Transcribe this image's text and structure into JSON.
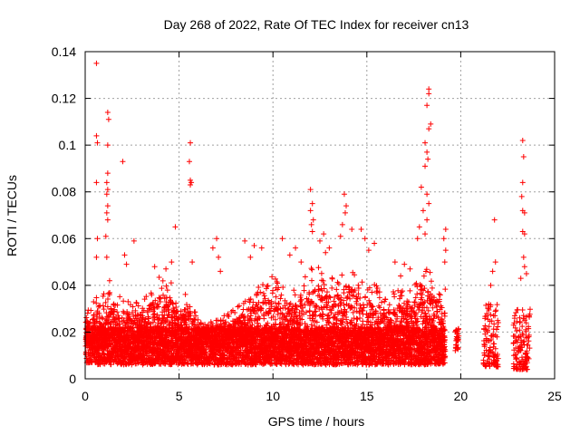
{
  "chart_data": {
    "type": "scatter",
    "title": "Day 268 of 2022, Rate Of TEC Index for receiver cn13",
    "xlabel": "GPS time / hours",
    "ylabel": "ROTI / TECUs",
    "xlim": [
      0,
      25
    ],
    "ylim": [
      0,
      0.14
    ],
    "xticks": [
      0,
      5,
      10,
      15,
      20,
      25
    ],
    "yticks": [
      0,
      0.02,
      0.04,
      0.06,
      0.08,
      0.1,
      0.12,
      0.14
    ],
    "xtick_labels": [
      "0",
      "5",
      "10",
      "15",
      "20",
      "25"
    ],
    "ytick_labels": [
      "0",
      "0.02",
      "0.04",
      "0.06",
      "0.08",
      "0.1",
      "0.12",
      "0.14"
    ],
    "grid": true,
    "legend": "none",
    "marker": "plus",
    "color": "#ff0000",
    "series": [
      {
        "name": "",
        "outliers": [
          [
            0.6,
            0.135
          ],
          [
            0.6,
            0.104
          ],
          [
            0.65,
            0.101
          ],
          [
            0.6,
            0.084
          ],
          [
            0.65,
            0.06
          ],
          [
            0.6,
            0.052
          ],
          [
            1.2,
            0.114
          ],
          [
            1.25,
            0.111
          ],
          [
            1.2,
            0.1
          ],
          [
            1.2,
            0.088
          ],
          [
            1.15,
            0.084
          ],
          [
            1.2,
            0.081
          ],
          [
            1.15,
            0.079
          ],
          [
            1.2,
            0.074
          ],
          [
            1.15,
            0.071
          ],
          [
            1.2,
            0.068
          ],
          [
            1.1,
            0.061
          ],
          [
            1.15,
            0.052
          ],
          [
            1.3,
            0.042
          ],
          [
            2.0,
            0.093
          ],
          [
            2.6,
            0.059
          ],
          [
            2.1,
            0.053
          ],
          [
            2.2,
            0.049
          ],
          [
            4.8,
            0.065
          ],
          [
            3.7,
            0.048
          ],
          [
            4.3,
            0.047
          ],
          [
            4.6,
            0.05
          ],
          [
            5.6,
            0.101
          ],
          [
            5.55,
            0.093
          ],
          [
            5.6,
            0.085
          ],
          [
            5.65,
            0.084
          ],
          [
            5.6,
            0.083
          ],
          [
            5.7,
            0.05
          ],
          [
            7.0,
            0.06
          ],
          [
            6.8,
            0.056
          ],
          [
            7.1,
            0.052
          ],
          [
            7.2,
            0.046
          ],
          [
            8.5,
            0.059
          ],
          [
            9.0,
            0.057
          ],
          [
            9.4,
            0.056
          ],
          [
            8.8,
            0.052
          ],
          [
            10.5,
            0.06
          ],
          [
            11.2,
            0.056
          ],
          [
            10.9,
            0.053
          ],
          [
            11.5,
            0.05
          ],
          [
            12.0,
            0.081
          ],
          [
            12.1,
            0.075
          ],
          [
            12.0,
            0.072
          ],
          [
            12.15,
            0.068
          ],
          [
            12.05,
            0.066
          ],
          [
            12.1,
            0.063
          ],
          [
            12.7,
            0.062
          ],
          [
            12.5,
            0.059
          ],
          [
            13.0,
            0.056
          ],
          [
            12.8,
            0.054
          ],
          [
            13.8,
            0.079
          ],
          [
            13.9,
            0.074
          ],
          [
            13.85,
            0.071
          ],
          [
            13.7,
            0.066
          ],
          [
            14.2,
            0.064
          ],
          [
            13.6,
            0.061
          ],
          [
            14.7,
            0.064
          ],
          [
            14.9,
            0.06
          ],
          [
            15.4,
            0.058
          ],
          [
            15.1,
            0.055
          ],
          [
            16.5,
            0.05
          ],
          [
            17.0,
            0.049
          ],
          [
            17.3,
            0.047
          ],
          [
            16.8,
            0.044
          ],
          [
            18.3,
            0.124
          ],
          [
            18.3,
            0.122
          ],
          [
            18.2,
            0.117
          ],
          [
            18.4,
            0.109
          ],
          [
            18.3,
            0.107
          ],
          [
            18.1,
            0.101
          ],
          [
            18.2,
            0.097
          ],
          [
            18.25,
            0.094
          ],
          [
            18.1,
            0.091
          ],
          [
            17.9,
            0.082
          ],
          [
            18.2,
            0.079
          ],
          [
            18.3,
            0.075
          ],
          [
            18.0,
            0.072
          ],
          [
            18.2,
            0.068
          ],
          [
            17.8,
            0.065
          ],
          [
            18.1,
            0.062
          ],
          [
            17.7,
            0.06
          ],
          [
            19.2,
            0.064
          ],
          [
            19.1,
            0.06
          ],
          [
            19.2,
            0.055
          ],
          [
            19.15,
            0.05
          ],
          [
            21.8,
            0.068
          ],
          [
            21.85,
            0.05
          ],
          [
            21.7,
            0.046
          ],
          [
            21.6,
            0.04
          ],
          [
            23.3,
            0.102
          ],
          [
            23.35,
            0.095
          ],
          [
            23.3,
            0.084
          ],
          [
            23.25,
            0.078
          ],
          [
            23.3,
            0.072
          ],
          [
            23.4,
            0.071
          ],
          [
            23.3,
            0.063
          ],
          [
            23.4,
            0.062
          ],
          [
            23.35,
            0.052
          ],
          [
            23.4,
            0.048
          ],
          [
            23.5,
            0.045
          ],
          [
            23.2,
            0.043
          ]
        ],
        "density_profile": [
          [
            0.0,
            0.028
          ],
          [
            0.5,
            0.034
          ],
          [
            1.0,
            0.042
          ],
          [
            1.5,
            0.034
          ],
          [
            2.0,
            0.036
          ],
          [
            2.5,
            0.032
          ],
          [
            3.0,
            0.034
          ],
          [
            3.5,
            0.04
          ],
          [
            4.0,
            0.044
          ],
          [
            4.5,
            0.044
          ],
          [
            5.0,
            0.04
          ],
          [
            5.5,
            0.036
          ],
          [
            6.0,
            0.026
          ],
          [
            6.5,
            0.024
          ],
          [
            7.0,
            0.026
          ],
          [
            7.5,
            0.028
          ],
          [
            8.0,
            0.03
          ],
          [
            8.5,
            0.034
          ],
          [
            9.0,
            0.04
          ],
          [
            9.5,
            0.042
          ],
          [
            10.0,
            0.046
          ],
          [
            10.5,
            0.04
          ],
          [
            11.0,
            0.038
          ],
          [
            11.5,
            0.042
          ],
          [
            12.0,
            0.048
          ],
          [
            12.5,
            0.05
          ],
          [
            13.0,
            0.042
          ],
          [
            13.5,
            0.046
          ],
          [
            14.0,
            0.05
          ],
          [
            14.5,
            0.048
          ],
          [
            15.0,
            0.044
          ],
          [
            15.5,
            0.04
          ],
          [
            16.0,
            0.036
          ],
          [
            16.5,
            0.038
          ],
          [
            17.0,
            0.04
          ],
          [
            17.5,
            0.044
          ],
          [
            18.0,
            0.05
          ],
          [
            18.5,
            0.046
          ],
          [
            19.2,
            0.04
          ]
        ],
        "late_clusters": [
          {
            "x_start": 19.7,
            "x_end": 19.9,
            "y_low": 0.012,
            "y_high": 0.022
          },
          {
            "x_start": 21.2,
            "x_end": 22.0,
            "y_low": 0.005,
            "y_high": 0.032
          },
          {
            "x_start": 22.8,
            "x_end": 23.7,
            "y_low": 0.004,
            "y_high": 0.03
          }
        ]
      }
    ]
  }
}
